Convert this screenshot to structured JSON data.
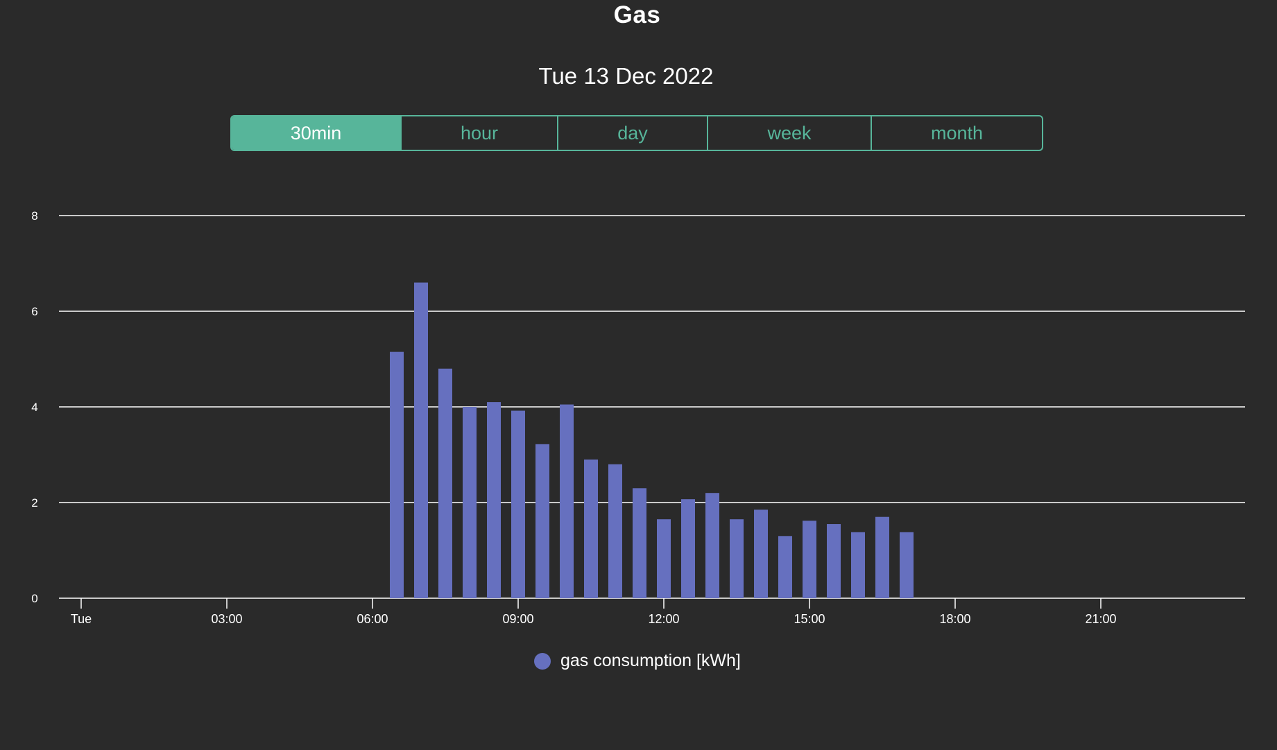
{
  "title": "Gas",
  "date_label": "Tue 13 Dec 2022",
  "periods": [
    {
      "label": "30min",
      "active": true
    },
    {
      "label": "hour",
      "active": false
    },
    {
      "label": "day",
      "active": false
    },
    {
      "label": "week",
      "active": false
    },
    {
      "label": "month",
      "active": false
    }
  ],
  "colors": {
    "background": "#2a2a2a",
    "accent": "#57b59a",
    "bar": "#6670bf",
    "grid": "#ffffff"
  },
  "chart_data": {
    "type": "bar",
    "ylim": [
      0,
      8
    ],
    "y_ticks": [
      "0",
      "2",
      "4",
      "6",
      "8"
    ],
    "x_tick_labels": [
      "Tue",
      "03:00",
      "06:00",
      "09:00",
      "12:00",
      "15:00",
      "18:00",
      "21:00"
    ],
    "x_tick_hours": [
      0,
      3,
      6,
      9,
      12,
      15,
      18,
      21
    ],
    "x_range_hours": [
      -0.5,
      24
    ],
    "grid": true,
    "legend_position": "bottom",
    "series": [
      {
        "name": "gas consumption [kWh]",
        "times": [
          "06:30",
          "07:00",
          "07:30",
          "08:00",
          "08:30",
          "09:00",
          "09:30",
          "10:00",
          "10:30",
          "11:00",
          "11:30",
          "12:00",
          "12:30",
          "13:00",
          "13:30",
          "14:00",
          "14:30",
          "15:00",
          "15:30",
          "16:00",
          "16:30",
          "17:00"
        ],
        "values": [
          5.15,
          6.6,
          4.8,
          4.0,
          4.1,
          3.92,
          3.22,
          4.05,
          2.9,
          2.8,
          2.3,
          1.65,
          2.07,
          2.2,
          1.65,
          1.85,
          1.3,
          1.62,
          1.55,
          1.38,
          1.7,
          1.38
        ]
      }
    ]
  }
}
